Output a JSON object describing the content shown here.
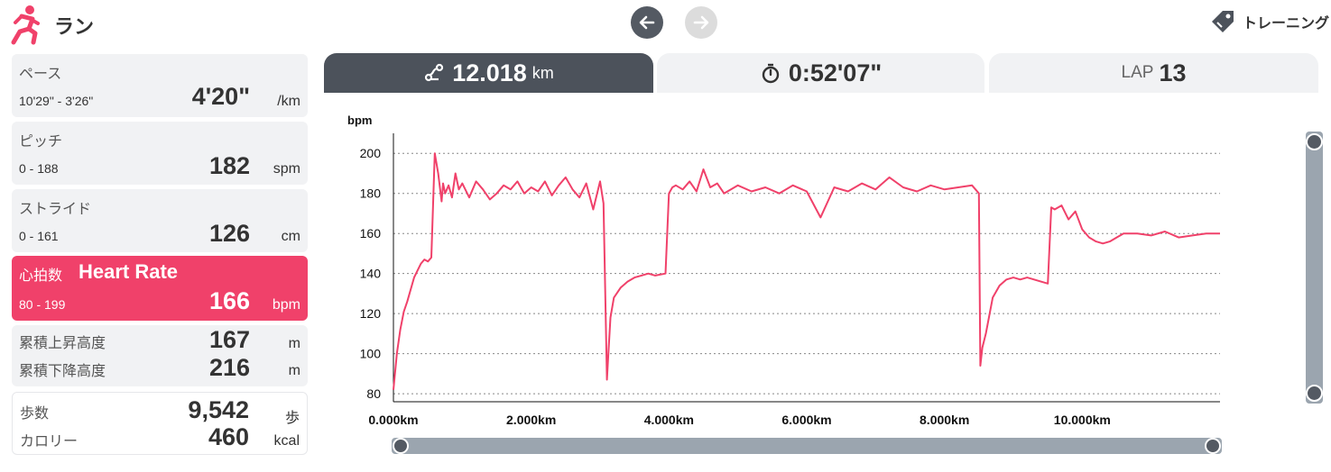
{
  "header": {
    "title": "ラン",
    "training_label": "トレーニング",
    "icons": {
      "run": "runner-icon",
      "prev": "arrow-left-icon",
      "next": "arrow-right-icon",
      "training": "tag-icon"
    }
  },
  "metrics": {
    "pace": {
      "label": "ペース",
      "range": "10'29\" - 3'26\"",
      "value": "4'20\"",
      "unit": "/km"
    },
    "pitch": {
      "label": "ピッチ",
      "range": "0 - 188",
      "value": "182",
      "unit": "spm"
    },
    "stride": {
      "label": "ストライド",
      "range": "0 - 161",
      "value": "126",
      "unit": "cm"
    },
    "heart_rate": {
      "label": "心拍数",
      "label_en": "Heart Rate",
      "range": "80 - 199",
      "value": "166",
      "unit": "bpm",
      "color": "#f0416a"
    },
    "ascent": {
      "label": "累積上昇高度",
      "value": "167",
      "unit": "m"
    },
    "descent": {
      "label": "累積下降高度",
      "value": "216",
      "unit": "m"
    },
    "steps": {
      "label": "歩数",
      "value": "9,542",
      "unit": "歩"
    },
    "calories": {
      "label": "カロリー",
      "value": "460",
      "unit": "kcal"
    }
  },
  "tabs": {
    "distance": {
      "value": "12.018",
      "unit": "km",
      "icon": "route-icon"
    },
    "time": {
      "value": "0:52'07\"",
      "icon": "stopwatch-icon"
    },
    "lap": {
      "label": "LAP",
      "value": "13"
    }
  },
  "chart_data": {
    "type": "line",
    "ylabel": "bpm",
    "xlabel": "",
    "y_ticks": [
      "200",
      "180",
      "160",
      "140",
      "120",
      "100",
      "80"
    ],
    "x_ticks": [
      "0.000km",
      "2.000km",
      "4.000km",
      "6.000km",
      "8.000km",
      "10.000km"
    ],
    "xlim": [
      0,
      12.0
    ],
    "ylim": [
      76,
      210
    ],
    "grid": "horizontal dotted",
    "line_color": "#f0416a",
    "series": [
      {
        "x": [
          0.0,
          0.05,
          0.1,
          0.15,
          0.2,
          0.3,
          0.4,
          0.45,
          0.5,
          0.55,
          0.6,
          0.65,
          0.7,
          0.72,
          0.75,
          0.8,
          0.85,
          0.9,
          0.95,
          1.0,
          1.1,
          1.2,
          1.3,
          1.4,
          1.5,
          1.6,
          1.7,
          1.8,
          1.9,
          2.0,
          2.1,
          2.2,
          2.3,
          2.4,
          2.5,
          2.6,
          2.7,
          2.8,
          2.9,
          3.0,
          3.05,
          3.1,
          3.12,
          3.15,
          3.2,
          3.3,
          3.4,
          3.5,
          3.6,
          3.7,
          3.8,
          3.95,
          4.0,
          4.05,
          4.1,
          4.2,
          4.3,
          4.4,
          4.5,
          4.6,
          4.7,
          4.8,
          5.0,
          5.2,
          5.4,
          5.6,
          5.8,
          6.0,
          6.2,
          6.4,
          6.6,
          6.8,
          7.0,
          7.2,
          7.4,
          7.6,
          7.8,
          8.0,
          8.2,
          8.4,
          8.5,
          8.52,
          8.55,
          8.6,
          8.65,
          8.7,
          8.8,
          8.9,
          9.0,
          9.1,
          9.2,
          9.3,
          9.4,
          9.5,
          9.55,
          9.6,
          9.7,
          9.8,
          9.9,
          10.0,
          10.1,
          10.2,
          10.3,
          10.4,
          10.5,
          10.6,
          10.8,
          11.0,
          11.2,
          11.4,
          11.6,
          11.8,
          12.0
        ],
        "y": [
          82,
          100,
          112,
          121,
          126,
          138,
          145,
          147,
          146,
          148,
          200,
          190,
          176,
          185,
          180,
          184,
          178,
          190,
          182,
          185,
          178,
          186,
          182,
          177,
          180,
          184,
          182,
          186,
          180,
          183,
          181,
          186,
          179,
          184,
          188,
          182,
          178,
          185,
          172,
          186,
          175,
          87,
          100,
          118,
          128,
          133,
          136,
          138,
          139,
          140,
          139,
          140,
          180,
          183,
          184,
          182,
          186,
          181,
          192,
          183,
          185,
          180,
          184,
          181,
          183,
          180,
          184,
          181,
          168,
          183,
          181,
          185,
          182,
          188,
          183,
          181,
          184,
          182,
          183,
          184,
          180,
          94,
          103,
          110,
          119,
          128,
          134,
          137,
          138,
          137,
          138,
          137,
          136,
          135,
          173,
          172,
          174,
          167,
          171,
          162,
          158,
          156,
          155,
          156,
          158,
          160,
          160,
          159,
          161,
          158,
          159,
          160,
          160
        ]
      }
    ]
  }
}
